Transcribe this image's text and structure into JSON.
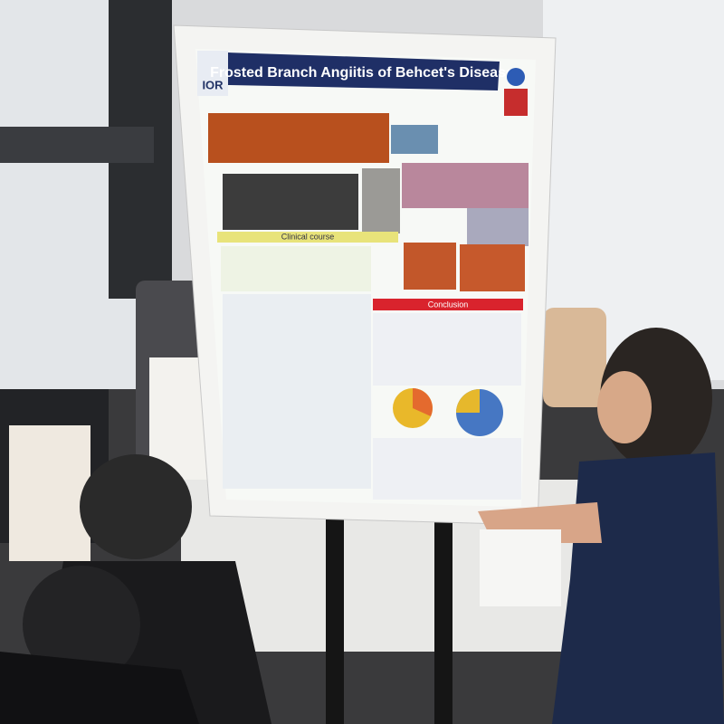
{
  "poster": {
    "title": "Frosted Branch Angiitis of Behcet's Disease",
    "logo": "IOR",
    "sections": [
      "Clinical course",
      "Conclusion"
    ]
  }
}
